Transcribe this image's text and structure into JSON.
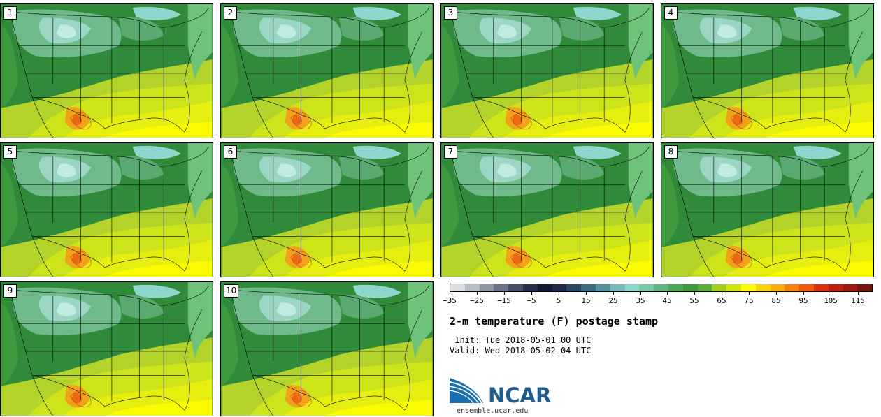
{
  "panels": [
    "1",
    "2",
    "3",
    "4",
    "5",
    "6",
    "7",
    "8",
    "9",
    "10"
  ],
  "colorbar": {
    "colors": [
      "#d9dde2",
      "#b8bec8",
      "#8f97a6",
      "#6a7488",
      "#444f69",
      "#262f4c",
      "#0f1a33",
      "#1d2a48",
      "#2b4763",
      "#3e6c80",
      "#5791a0",
      "#78b9bb",
      "#8fd6cc",
      "#79c9a6",
      "#5fb57f",
      "#4aa85a",
      "#3d9a3f",
      "#5aac3a",
      "#a1cd1b",
      "#d2e30c",
      "#fcfc05",
      "#f9d207",
      "#f7ae08",
      "#f4830b",
      "#ee5a0d",
      "#d9310c",
      "#bb1f0f",
      "#9f180f",
      "#761611"
    ],
    "tick_labels": [
      "−35",
      "−25",
      "−15",
      "−5",
      "5",
      "15",
      "25",
      "35",
      "45",
      "55",
      "65",
      "75",
      "85",
      "95",
      "105",
      "115"
    ]
  },
  "title": "2-m temperature (F) postage stamp",
  "init": " Init: Tue 2018-05-01 00 UTC",
  "valid": "Valid: Wed 2018-05-02 04 UTC",
  "logo": {
    "text": "NCAR",
    "url": "ensemble.ucar.edu"
  }
}
